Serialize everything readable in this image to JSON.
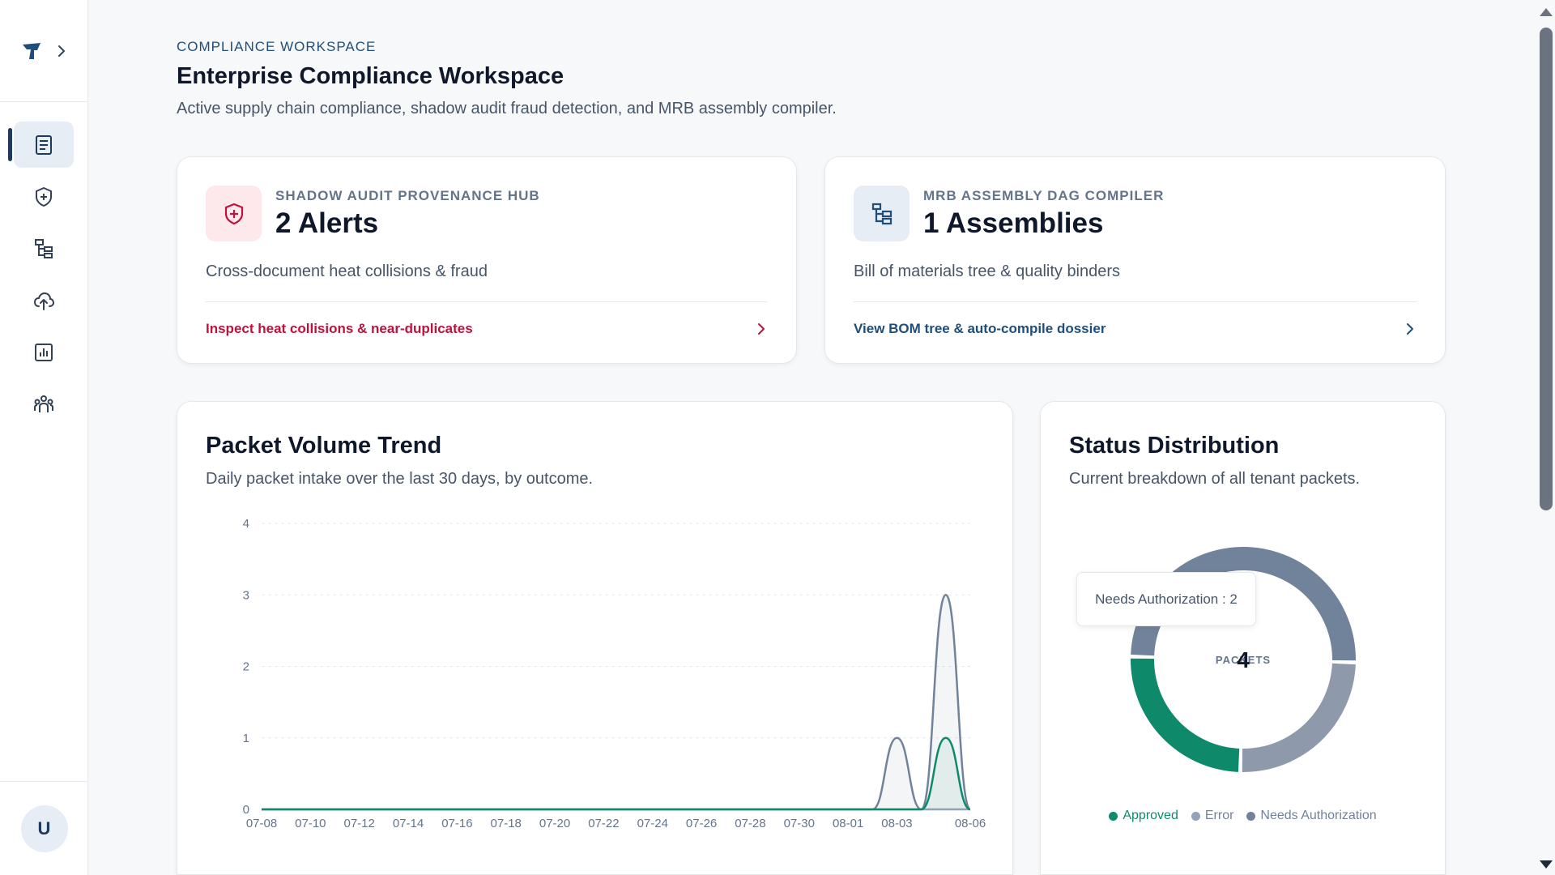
{
  "sidebar": {
    "logo_icon": "brand-logo-icon",
    "expand_icon": "chevron-right-icon",
    "items": [
      {
        "icon": "document-list-icon",
        "active": true
      },
      {
        "icon": "shield-plus-icon",
        "active": false
      },
      {
        "icon": "tree-hierarchy-icon",
        "active": false
      },
      {
        "icon": "cloud-upload-icon",
        "active": false
      },
      {
        "icon": "bar-chart-icon",
        "active": false
      },
      {
        "icon": "users-group-icon",
        "active": false
      }
    ],
    "avatar_initial": "U"
  },
  "header": {
    "eyebrow": "COMPLIANCE WORKSPACE",
    "title": "Enterprise Compliance Workspace",
    "subtitle": "Active supply chain compliance, shadow audit fraud detection, and MRB assembly compiler."
  },
  "cards": {
    "shadow_audit": {
      "eyebrow": "SHADOW AUDIT PROVENANCE HUB",
      "value": "2 Alerts",
      "description": "Cross-document heat collisions & fraud",
      "action": "Inspect heat collisions & near-duplicates",
      "accent": "#be123c",
      "icon": "shield-plus-icon"
    },
    "mrb_compiler": {
      "eyebrow": "MRB ASSEMBLY DAG COMPILER",
      "value": "1 Assemblies",
      "description": "Bill of materials tree & quality binders",
      "action": "View BOM tree & auto-compile dossier",
      "accent": "#1e4e79",
      "icon": "tree-hierarchy-icon"
    }
  },
  "trend": {
    "title": "Packet Volume Trend",
    "subtitle": "Daily packet intake over the last 30 days, by outcome."
  },
  "status": {
    "title": "Status Distribution",
    "subtitle": "Current breakdown of all tenant packets.",
    "center_value": "4",
    "center_label": "PACKETS",
    "tooltip": "Needs Authorization : 2"
  },
  "chart_data": [
    {
      "type": "area",
      "ylim": [
        0,
        4
      ],
      "yticks": [
        0,
        1,
        2,
        3,
        4
      ],
      "x_tick_labels": [
        "07-08",
        "07-10",
        "07-12",
        "07-14",
        "07-16",
        "07-18",
        "07-20",
        "07-22",
        "07-24",
        "07-26",
        "07-28",
        "07-30",
        "08-01",
        "08-03",
        "08-06"
      ],
      "x": [
        "07-08",
        "07-09",
        "07-10",
        "07-11",
        "07-12",
        "07-13",
        "07-14",
        "07-15",
        "07-16",
        "07-17",
        "07-18",
        "07-19",
        "07-20",
        "07-21",
        "07-22",
        "07-23",
        "07-24",
        "07-25",
        "07-26",
        "07-27",
        "07-28",
        "07-29",
        "07-30",
        "07-31",
        "08-01",
        "08-02",
        "08-03",
        "08-04",
        "08-05",
        "08-06"
      ],
      "series": [
        {
          "name": "Approved",
          "color": "#0e8a6b",
          "values": [
            0,
            0,
            0,
            0,
            0,
            0,
            0,
            0,
            0,
            0,
            0,
            0,
            0,
            0,
            0,
            0,
            0,
            0,
            0,
            0,
            0,
            0,
            0,
            0,
            0,
            0,
            0,
            0,
            1,
            0
          ]
        },
        {
          "name": "Error",
          "color": "#94a3b8",
          "values": [
            0,
            0,
            0,
            0,
            0,
            0,
            0,
            0,
            0,
            0,
            0,
            0,
            0,
            0,
            0,
            0,
            0,
            0,
            0,
            0,
            0,
            0,
            0,
            0,
            0,
            0,
            0,
            0,
            0,
            0
          ]
        },
        {
          "name": "Needs Authorization",
          "color": "#71839a",
          "values": [
            0,
            0,
            0,
            0,
            0,
            0,
            0,
            0,
            0,
            0,
            0,
            0,
            0,
            0,
            0,
            0,
            0,
            0,
            0,
            0,
            0,
            0,
            0,
            0,
            0,
            0,
            1,
            0,
            3,
            0
          ]
        }
      ],
      "grid": true
    },
    {
      "type": "pie",
      "donut": true,
      "categories": [
        "Needs Authorization",
        "Error",
        "Approved"
      ],
      "values": [
        2,
        1,
        1
      ],
      "colors": [
        "#71839a",
        "#8e9aab",
        "#0e8a6b"
      ],
      "legend": [
        "Approved",
        "Error",
        "Needs Authorization"
      ],
      "legend_colors": [
        "#0e8a6b",
        "#94a3b8",
        "#71839a"
      ],
      "legend_placement": "bottom"
    }
  ]
}
